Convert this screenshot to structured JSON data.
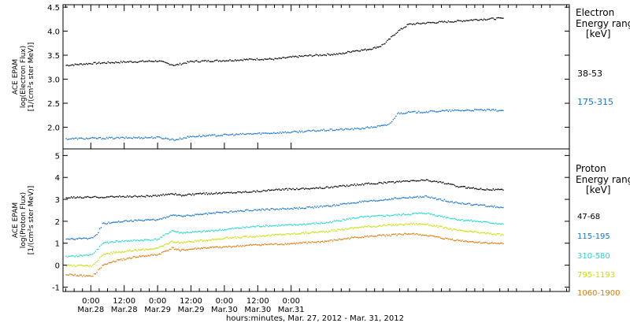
{
  "chart_data": [
    {
      "type": "scatter",
      "title": "",
      "ylabel_lines": [
        "ACE EPAM",
        "log(Electron Flux)",
        "[1/(cm²s ster MeV)]"
      ],
      "xlabel": "hours:minutes, Mar. 27, 2012 - Mar. 31, 2012",
      "ylim": [
        1.55,
        4.55
      ],
      "xlim_hours": [
        -10,
        172
      ],
      "yticks": [
        2.0,
        2.5,
        3.0,
        3.5,
        4.0,
        4.5
      ],
      "ytick_labels": [
        "2.0",
        "2.5",
        "3.0",
        "3.5",
        "4.0",
        "4.5"
      ],
      "legend_title": [
        "Electron",
        "Energy ranges",
        "[keV]"
      ],
      "series": [
        {
          "name": "38-53",
          "color": "#000000",
          "points": [
            [
              -9,
              3.3
            ],
            [
              0,
              3.34
            ],
            [
              12,
              3.37
            ],
            [
              24,
              3.39
            ],
            [
              30,
              3.3
            ],
            [
              36,
              3.38
            ],
            [
              48,
              3.4
            ],
            [
              60,
              3.43
            ],
            [
              66,
              3.43
            ],
            [
              72,
              3.47
            ],
            [
              78,
              3.5
            ],
            [
              84,
              3.52
            ],
            [
              90,
              3.54
            ],
            [
              94,
              3.6
            ],
            [
              98,
              3.62
            ],
            [
              101,
              3.65
            ],
            [
              104,
              3.7
            ],
            [
              106,
              3.78
            ],
            [
              110,
              4.0
            ],
            [
              114,
              4.15
            ],
            [
              120,
              4.18
            ],
            [
              126,
              4.2
            ],
            [
              132,
              4.22
            ],
            [
              138,
              4.25
            ],
            [
              148,
              4.28
            ]
          ]
        },
        {
          "name": "175-315",
          "color": "#1874cd",
          "points": [
            [
              -9,
              1.77
            ],
            [
              0,
              1.78
            ],
            [
              12,
              1.79
            ],
            [
              24,
              1.8
            ],
            [
              30,
              1.75
            ],
            [
              36,
              1.82
            ],
            [
              48,
              1.85
            ],
            [
              60,
              1.88
            ],
            [
              72,
              1.91
            ],
            [
              84,
              1.95
            ],
            [
              96,
              1.98
            ],
            [
              102,
              2.02
            ],
            [
              106,
              2.05
            ],
            [
              108,
              2.12
            ],
            [
              110,
              2.3
            ],
            [
              114,
              2.32
            ],
            [
              120,
              2.33
            ],
            [
              126,
              2.35
            ],
            [
              132,
              2.36
            ],
            [
              140,
              2.37
            ],
            [
              148,
              2.36
            ]
          ]
        }
      ]
    },
    {
      "type": "scatter",
      "title": "",
      "ylabel_lines": [
        "ACE EPAM",
        "log(Proton Flux)",
        "[1/(cm²s ster MeV)]"
      ],
      "xlabel": "hours:minutes, Mar. 27, 2012 - Mar. 31, 2012",
      "ylim": [
        -1.2,
        5.3
      ],
      "xlim_hours": [
        -10,
        172
      ],
      "yticks": [
        -1,
        0,
        1,
        2,
        3,
        4,
        5
      ],
      "ytick_labels": [
        "-1",
        "0",
        "1",
        "2",
        "3",
        "4",
        "5"
      ],
      "legend_title": [
        "Proton",
        "Energy ranges",
        "[keV]"
      ],
      "xticks_hours": [
        0,
        12,
        24,
        36,
        48,
        60,
        72
      ],
      "xtick_labels": [
        "0:00",
        "12:00",
        "0:00",
        "12:00",
        "0:00",
        "12:00",
        "0:00"
      ],
      "xtick_sublabels": [
        "Mar.28",
        "Mar.28",
        "Mar.29",
        "Mar.29",
        "Mar.30",
        "Mar.30",
        "Mar.31"
      ],
      "series": [
        {
          "name": "47-68",
          "color": "#000000",
          "points": [
            [
              -9,
              3.1
            ],
            [
              0,
              3.12
            ],
            [
              12,
              3.15
            ],
            [
              24,
              3.18
            ],
            [
              29,
              3.3
            ],
            [
              32,
              3.2
            ],
            [
              40,
              3.28
            ],
            [
              48,
              3.32
            ],
            [
              60,
              3.4
            ],
            [
              72,
              3.5
            ],
            [
              84,
              3.55
            ],
            [
              96,
              3.7
            ],
            [
              102,
              3.75
            ],
            [
              108,
              3.8
            ],
            [
              114,
              3.85
            ],
            [
              120,
              3.9
            ],
            [
              126,
              3.8
            ],
            [
              132,
              3.6
            ],
            [
              140,
              3.5
            ],
            [
              148,
              3.45
            ]
          ]
        },
        {
          "name": "115-195",
          "color": "#1874cd",
          "points": [
            [
              -9,
              1.2
            ],
            [
              0,
              1.25
            ],
            [
              2,
              1.4
            ],
            [
              4,
              1.9
            ],
            [
              8,
              2.0
            ],
            [
              16,
              2.05
            ],
            [
              24,
              2.1
            ],
            [
              29,
              2.3
            ],
            [
              32,
              2.25
            ],
            [
              40,
              2.35
            ],
            [
              48,
              2.45
            ],
            [
              60,
              2.55
            ],
            [
              72,
              2.6
            ],
            [
              84,
              2.7
            ],
            [
              96,
              2.9
            ],
            [
              102,
              2.95
            ],
            [
              108,
              3.05
            ],
            [
              114,
              3.1
            ],
            [
              120,
              3.15
            ],
            [
              126,
              3.0
            ],
            [
              132,
              2.85
            ],
            [
              140,
              2.75
            ],
            [
              148,
              2.65
            ]
          ]
        },
        {
          "name": "310-580",
          "color": "#20d8d0",
          "points": [
            [
              -9,
              0.4
            ],
            [
              0,
              0.5
            ],
            [
              2,
              0.7
            ],
            [
              4,
              1.0
            ],
            [
              8,
              1.1
            ],
            [
              16,
              1.15
            ],
            [
              24,
              1.2
            ],
            [
              29,
              1.6
            ],
            [
              32,
              1.5
            ],
            [
              40,
              1.55
            ],
            [
              48,
              1.65
            ],
            [
              60,
              1.8
            ],
            [
              72,
              1.85
            ],
            [
              84,
              1.95
            ],
            [
              96,
              2.2
            ],
            [
              102,
              2.25
            ],
            [
              108,
              2.3
            ],
            [
              114,
              2.35
            ],
            [
              120,
              2.4
            ],
            [
              126,
              2.25
            ],
            [
              132,
              2.1
            ],
            [
              140,
              2.0
            ],
            [
              148,
              1.9
            ]
          ]
        },
        {
          "name": "795-1193",
          "color": "#c8e000",
          "points": [
            [
              -9,
              0.0
            ],
            [
              0,
              0.0
            ],
            [
              2,
              0.2
            ],
            [
              4,
              0.5
            ],
            [
              8,
              0.6
            ],
            [
              16,
              0.7
            ],
            [
              24,
              0.8
            ],
            [
              29,
              1.1
            ],
            [
              32,
              1.05
            ],
            [
              40,
              1.15
            ],
            [
              48,
              1.25
            ],
            [
              60,
              1.35
            ],
            [
              72,
              1.45
            ],
            [
              84,
              1.55
            ],
            [
              96,
              1.75
            ],
            [
              102,
              1.8
            ],
            [
              108,
              1.85
            ],
            [
              114,
              1.9
            ],
            [
              120,
              1.9
            ],
            [
              126,
              1.75
            ],
            [
              132,
              1.6
            ],
            [
              140,
              1.5
            ],
            [
              148,
              1.4
            ]
          ]
        },
        {
          "name": "1060-1900",
          "color": "#e07808",
          "points": [
            [
              -9,
              -0.4
            ],
            [
              0,
              -0.5
            ],
            [
              2,
              -0.3
            ],
            [
              4,
              0.0
            ],
            [
              8,
              0.2
            ],
            [
              16,
              0.4
            ],
            [
              24,
              0.5
            ],
            [
              29,
              0.8
            ],
            [
              32,
              0.7
            ],
            [
              40,
              0.8
            ],
            [
              48,
              0.85
            ],
            [
              60,
              0.95
            ],
            [
              72,
              1.0
            ],
            [
              84,
              1.1
            ],
            [
              96,
              1.3
            ],
            [
              102,
              1.35
            ],
            [
              108,
              1.4
            ],
            [
              114,
              1.45
            ],
            [
              120,
              1.4
            ],
            [
              126,
              1.25
            ],
            [
              132,
              1.15
            ],
            [
              140,
              1.05
            ],
            [
              148,
              1.0
            ]
          ]
        }
      ]
    }
  ]
}
